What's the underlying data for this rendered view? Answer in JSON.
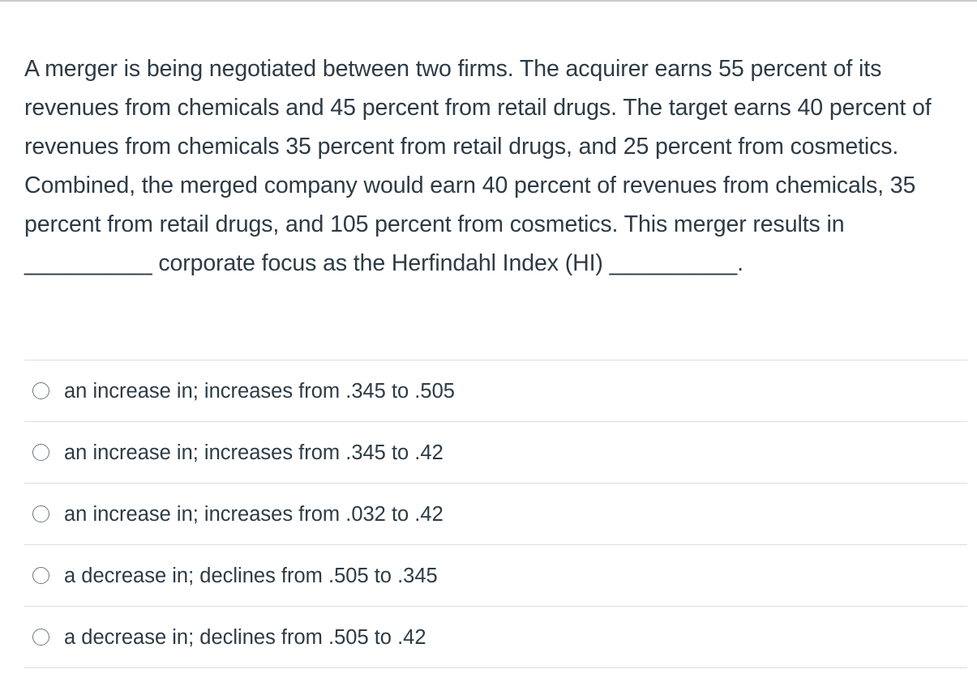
{
  "question": {
    "text": "A merger is being negotiated between two firms. The acquirer earns 55 percent of its revenues from chemicals and 45 percent from retail drugs. The target earns 40 percent of revenues from chemicals 35 percent from retail drugs, and 25 percent from cosmetics. Combined, the merged company would earn 40 percent of revenues from chemicals, 35 percent from retail drugs, and 105 percent from cosmetics. This merger results in __________ corporate focus as the Herfindahl Index (HI) __________."
  },
  "answers": [
    {
      "label": "an increase in; increases from .345 to .505",
      "selected": false
    },
    {
      "label": "an increase in; increases from .345 to .42",
      "selected": false
    },
    {
      "label": "an increase in; increases from .032 to .42",
      "selected": false
    },
    {
      "label": "a decrease in; declines from .505 to .345",
      "selected": false
    },
    {
      "label": "a decrease in; declines from .505 to .42",
      "selected": false
    }
  ],
  "colors": {
    "text": "#2d3b45",
    "divider": "#dadee1",
    "radio_border": "#6b7780"
  }
}
